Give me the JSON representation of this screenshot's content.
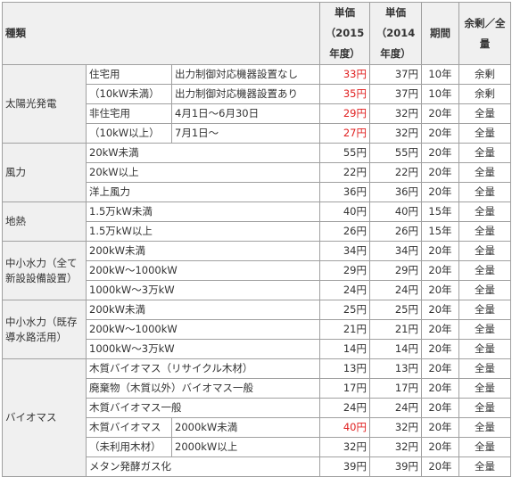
{
  "headers": {
    "kind": "種類",
    "price2015": "単価（2015年度）",
    "price2014": "単価（2014年度）",
    "period": "期間",
    "surplus": "余剰／全量"
  },
  "rows": {
    "solar": {
      "label": "太陽光発電",
      "res_a": "住宅用",
      "res_b": "（10kW未満）",
      "nonres_a": "非住宅用",
      "nonres_b": "（10kW以上）",
      "r1": {
        "detail": "出力制御対応機器設置なし",
        "p2015": "33円",
        "p2014": "37円",
        "period": "10年",
        "type": "余剰"
      },
      "r2": {
        "detail": "出力制御対応機器設置あり",
        "p2015": "35円",
        "p2014": "37円",
        "period": "10年",
        "type": "余剰"
      },
      "r3": {
        "detail": "4月1日～6月30日",
        "p2015": "29円",
        "p2014": "32円",
        "period": "20年",
        "type": "全量"
      },
      "r4": {
        "detail": "7月1日～",
        "p2015": "27円",
        "p2014": "32円",
        "period": "20年",
        "type": "全量"
      }
    },
    "wind": {
      "label": "風力",
      "r1": {
        "sub": "20kW未満",
        "p2015": "55円",
        "p2014": "55円",
        "period": "20年",
        "type": "全量"
      },
      "r2": {
        "sub": "20kW以上",
        "p2015": "22円",
        "p2014": "22円",
        "period": "20年",
        "type": "全量"
      },
      "r3": {
        "sub": "洋上風力",
        "p2015": "36円",
        "p2014": "36円",
        "period": "20年",
        "type": "全量"
      }
    },
    "geo": {
      "label": "地熱",
      "r1": {
        "sub": "1.5万kW未満",
        "p2015": "40円",
        "p2014": "40円",
        "period": "15年",
        "type": "全量"
      },
      "r2": {
        "sub": "1.5万kW以上",
        "p2015": "26円",
        "p2014": "26円",
        "period": "15年",
        "type": "全量"
      }
    },
    "hydro_new": {
      "label": "中小水力（全て新設設備設置）",
      "r1": {
        "sub": "200kW未満",
        "p2015": "34円",
        "p2014": "34円",
        "period": "20年",
        "type": "全量"
      },
      "r2": {
        "sub": "200kW～1000kW",
        "p2015": "29円",
        "p2014": "29円",
        "period": "20年",
        "type": "全量"
      },
      "r3": {
        "sub": "1000kW～3万kW",
        "p2015": "24円",
        "p2014": "24円",
        "period": "20年",
        "type": "全量"
      }
    },
    "hydro_exist": {
      "label": "中小水力（既存導水路活用）",
      "r1": {
        "sub": "200kW未満",
        "p2015": "25円",
        "p2014": "25円",
        "period": "20年",
        "type": "全量"
      },
      "r2": {
        "sub": "200kW～1000kW",
        "p2015": "21円",
        "p2014": "21円",
        "period": "20年",
        "type": "全量"
      },
      "r3": {
        "sub": "1000kW～3万kW",
        "p2015": "14円",
        "p2014": "14円",
        "period": "20年",
        "type": "全量"
      }
    },
    "biomass": {
      "label": "バイオマス",
      "r1": {
        "sub": "木質バイオマス（リサイクル木材）",
        "p2015": "13円",
        "p2014": "13円",
        "period": "20年",
        "type": "全量"
      },
      "r2": {
        "sub": "廃棄物（木質以外）バイオマス一般",
        "p2015": "17円",
        "p2014": "17円",
        "period": "20年",
        "type": "全量"
      },
      "r3": {
        "sub": "木質バイオマス一般",
        "p2015": "24円",
        "p2014": "24円",
        "period": "20年",
        "type": "全量"
      },
      "unused_a": "木質バイオマス",
      "unused_b": "（未利用木材）",
      "r4": {
        "detail": "2000kW未満",
        "p2015": "40円",
        "p2014": "32円",
        "period": "20年",
        "type": "全量"
      },
      "r5": {
        "detail": "2000kW以上",
        "p2015": "32円",
        "p2014": "32円",
        "period": "20年",
        "type": "全量"
      },
      "r6": {
        "sub": "メタン発酵ガス化",
        "p2015": "39円",
        "p2014": "39円",
        "period": "20年",
        "type": "全量"
      }
    }
  },
  "colors": {
    "header_bg": "#f0f0f0",
    "border": "#a0a0a0",
    "highlight": "#e02020",
    "text": "#333333"
  }
}
